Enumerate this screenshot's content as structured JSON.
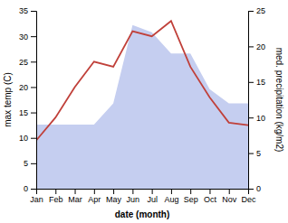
{
  "chart_data": {
    "type": "line",
    "categories": [
      "Jan",
      "Feb",
      "Mar",
      "Apr",
      "May",
      "Jun",
      "Jul",
      "Aug",
      "Sep",
      "Oct",
      "Nov",
      "Dec"
    ],
    "series": [
      {
        "type": "area",
        "axis": "y2",
        "color": "#c5cef0",
        "values": [
          9,
          9,
          9,
          9,
          12,
          23,
          22,
          19,
          19,
          14,
          12,
          12
        ]
      },
      {
        "type": "line",
        "color": "#c0403a",
        "values": [
          9.5,
          14.0,
          20.0,
          25.0,
          24.0,
          31.0,
          30.0,
          33.0,
          24.0,
          18.0,
          13.0,
          12.5
        ]
      }
    ],
    "xlabel": "date (month)",
    "ylabel": "max temp (C)",
    "y2label": "med. precipitation (kg/m2)",
    "ylim": [
      0,
      35
    ],
    "yticks": [
      0,
      5,
      10,
      15,
      20,
      25,
      30,
      35
    ],
    "y2lim": [
      0,
      25
    ],
    "y2ticks": [
      0,
      5,
      10,
      15,
      20,
      25
    ],
    "grid": false
  }
}
